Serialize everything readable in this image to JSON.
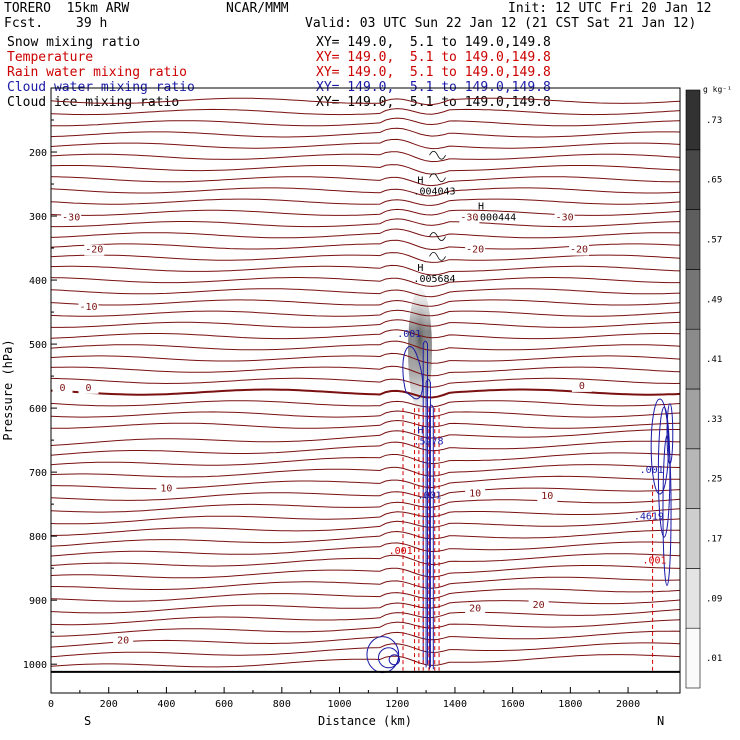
{
  "header": {
    "model": "TORERO  15km ARW",
    "forecast_label": "Fcst.",
    "forecast_value": "39 h",
    "center": "NCAR/MMM",
    "init": "Init: 12 UTC Fri 20 Jan 12",
    "valid": "Valid: 03 UTC Sun 22 Jan 12 (21 CST Sat 21 Jan 12)",
    "fields": [
      {
        "name": "Snow mixing ratio",
        "xy": "XY= 149.0,  5.1 to 149.0,149.8",
        "color": "#000000"
      },
      {
        "name": "Temperature",
        "xy": "XY= 149.0,  5.1 to 149.0,149.8",
        "color": "#cc0000"
      },
      {
        "name": "Rain water mixing ratio",
        "xy": "XY= 149.0,  5.1 to 149.0,149.8",
        "color": "#cc0000"
      },
      {
        "name": "Cloud water mixing ratio",
        "xy": "XY= 149.0,  5.1 to 149.0,149.8",
        "color": "#1a1aa6"
      },
      {
        "name": "Cloud ice mixing ratio",
        "xy": "XY= 149.0,  5.1 to 149.0,149.8",
        "color": "#000000"
      }
    ]
  },
  "chart_data": {
    "type": "cross-section",
    "xlabel": "Distance (km)",
    "ylabel": "Pressure (hPa)",
    "xlim": [
      0,
      2180
    ],
    "ylim": [
      1045,
      100
    ],
    "x_ticks": [
      0,
      200,
      400,
      600,
      800,
      1000,
      1200,
      1400,
      1600,
      1800,
      2000
    ],
    "y_ticks": [
      200,
      300,
      400,
      500,
      600,
      700,
      800,
      900,
      1000
    ],
    "endpoints": {
      "left": "S",
      "right": "N"
    },
    "surface_pressure": 1012,
    "colorbar": {
      "units": "g kg⁻¹",
      "levels": [
        ".01",
        ".09",
        ".17",
        ".25",
        ".33",
        ".41",
        ".49",
        ".57",
        ".65",
        ".73"
      ]
    },
    "temperature_labels": [
      {
        "text": "-30",
        "x": 70,
        "p": 307
      },
      {
        "text": "-30",
        "x": 1450,
        "p": 307
      },
      {
        "text": "-30",
        "x": 1780,
        "p": 307
      },
      {
        "text": "-20",
        "x": 150,
        "p": 357
      },
      {
        "text": "-20",
        "x": 1470,
        "p": 357
      },
      {
        "text": "-20",
        "x": 1830,
        "p": 357
      },
      {
        "text": "-10",
        "x": 130,
        "p": 447
      },
      {
        "text": "0",
        "x": 40,
        "p": 573
      },
      {
        "text": "0",
        "x": 130,
        "p": 573
      },
      {
        "text": "0",
        "x": 1840,
        "p": 570
      },
      {
        "text": "10",
        "x": 400,
        "p": 730
      },
      {
        "text": "10",
        "x": 1470,
        "p": 738
      },
      {
        "text": "10",
        "x": 1720,
        "p": 742
      },
      {
        "text": "20",
        "x": 250,
        "p": 968
      },
      {
        "text": "20",
        "x": 1470,
        "p": 918
      },
      {
        "text": "20",
        "x": 1690,
        "p": 912
      }
    ],
    "extrema": [
      {
        "symbol": "H",
        "value": ".004043",
        "x": 1270,
        "p": 249
      },
      {
        "symbol": "H",
        "value": ".000444",
        "x": 1480,
        "p": 290
      },
      {
        "symbol": "H",
        "value": ".005684",
        "x": 1270,
        "p": 386
      },
      {
        "symbol": "H",
        "value": ".5278",
        "x": 1270,
        "p": 640
      }
    ],
    "cloud_labels": [
      {
        "text": ".001",
        "x": 1200,
        "p": 489
      },
      {
        "text": ".001",
        "x": 1270,
        "p": 741
      },
      {
        "text": ".001",
        "x": 1170,
        "p": 828
      },
      {
        "text": ".001",
        "x": 2040,
        "p": 701
      },
      {
        "text": ".4619",
        "x": 2020,
        "p": 774
      },
      {
        "text": ".001",
        "x": 2050,
        "p": 843
      }
    ]
  }
}
